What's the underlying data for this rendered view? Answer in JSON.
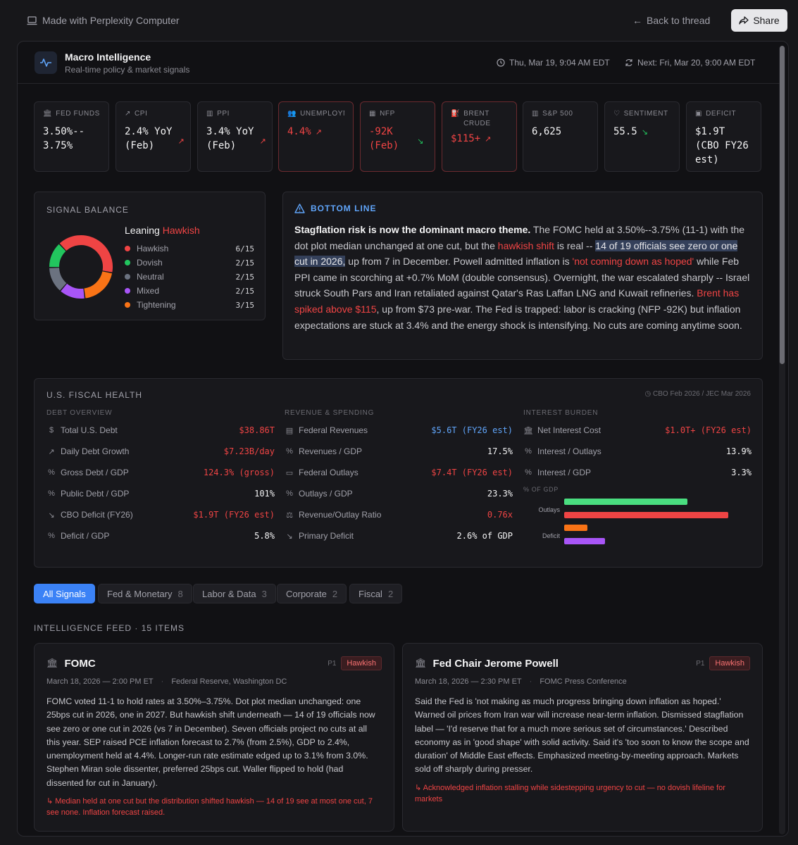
{
  "topbar": {
    "made_with": "Made with Perplexity Computer",
    "back": "Back to thread",
    "share": "Share"
  },
  "header": {
    "title": "Macro Intelligence",
    "subtitle": "Real-time policy & market signals",
    "timestamp": "Thu, Mar 19, 9:04 AM EDT",
    "next": "Next: Fri, Mar 20, 9:00 AM EDT"
  },
  "metrics": [
    {
      "label": "FED FUNDS",
      "value": "3.50%--\n3.75%",
      "icon": "bank-icon"
    },
    {
      "label": "CPI",
      "value": "2.4% YoY\n(Feb)",
      "icon": "trend-up-icon"
    },
    {
      "label": "PPI",
      "value": "3.4% YoY\n(Feb)",
      "icon": "bar-chart-icon"
    },
    {
      "label": "UNEMPLOYMENT",
      "value": "4.4%",
      "icon": "users-icon"
    },
    {
      "label": "NFP",
      "value": "-92K\n(Feb)",
      "icon": "building-icon"
    },
    {
      "label": "BRENT\nCRUDE",
      "value": "$115+",
      "icon": "fuel-icon"
    },
    {
      "label": "S&P 500",
      "value": "6,625",
      "icon": "bar-chart-icon"
    },
    {
      "label": "SENTIMENT",
      "value": "55.5",
      "icon": "heart-icon"
    },
    {
      "label": "DEFICIT",
      "value": "$1.9T\n(CBO FY26\nest)",
      "icon": "wallet-icon"
    }
  ],
  "signal_balance": {
    "title": "SIGNAL BALANCE",
    "leaning_prefix": "Leaning ",
    "leaning": "Hawkish",
    "items": [
      {
        "label": "Hawkish",
        "value": "6/15",
        "count": 6,
        "color": "#ef4444"
      },
      {
        "label": "Dovish",
        "value": "2/15",
        "count": 2,
        "color": "#22c55e"
      },
      {
        "label": "Neutral",
        "value": "2/15",
        "count": 2,
        "color": "#6b7280"
      },
      {
        "label": "Mixed",
        "value": "2/15",
        "count": 2,
        "color": "#a855f7"
      },
      {
        "label": "Tightening",
        "value": "3/15",
        "count": 3,
        "color": "#f97316"
      }
    ]
  },
  "bottom_line": {
    "title": "BOTTOM LINE",
    "lead": "Stagflation risk is now the dominant macro theme.",
    "t1": " The FOMC held at 3.50%--3.75% (11-1) with the dot plot median unchanged at one cut, but the ",
    "h1": "hawkish shift",
    "t2": " is real -- ",
    "sel": "14 of 19 officials see zero or one cut in 2026,",
    "t3": " up from 7 in December. Powell admitted inflation is ",
    "h2": "'not coming down as hoped'",
    "t4": " while Feb PPI came in scorching at +0.7% MoM (double consensus). Overnight, the war escalated sharply -- Israel struck South Pars and Iran retaliated against Qatar's Ras Laffan LNG and Kuwait refineries. ",
    "h3": "Brent has spiked above $115",
    "t5": ", up from $73 pre-war. The Fed is trapped: labor is cracking (NFP -92K) but inflation expectations are stuck at 3.4% and the energy shock is intensifying. No cuts are coming anytime soon."
  },
  "fiscal": {
    "title": "U.S. FISCAL HEALTH",
    "source": "CBO Feb 2026 / JEC Mar 2026",
    "debt": {
      "heading": "DEBT OVERVIEW",
      "rows": [
        {
          "label": "Total U.S. Debt",
          "value": "$38.86T",
          "icon": "dollar-icon"
        },
        {
          "label": "Daily Debt Growth",
          "value": "$7.23B/day",
          "icon": "trend-up-icon"
        },
        {
          "label": "Gross Debt / GDP",
          "value": "124.3% (gross)",
          "icon": "percent-icon"
        },
        {
          "label": "Public Debt / GDP",
          "value": "101%",
          "icon": "percent-icon"
        },
        {
          "label": "CBO Deficit (FY26)",
          "value": "$1.9T (FY26 est)",
          "icon": "trend-down-icon"
        },
        {
          "label": "Deficit / GDP",
          "value": "5.8%",
          "icon": "percent-icon"
        }
      ]
    },
    "revenue": {
      "heading": "REVENUE & SPENDING",
      "rows": [
        {
          "label": "Federal Revenues",
          "value": "$5.6T (FY26 est)",
          "icon": "receipt-icon"
        },
        {
          "label": "Revenues / GDP",
          "value": "17.5%",
          "icon": "percent-icon"
        },
        {
          "label": "Federal Outlays",
          "value": "$7.4T (FY26 est)",
          "icon": "card-icon"
        },
        {
          "label": "Outlays / GDP",
          "value": "23.3%",
          "icon": "percent-icon"
        },
        {
          "label": "Revenue/Outlay Ratio",
          "value": "0.76x",
          "icon": "scale-icon"
        },
        {
          "label": "Primary Deficit",
          "value": "2.6% of GDP",
          "icon": "trend-down-icon"
        }
      ]
    },
    "interest": {
      "heading": "INTEREST BURDEN",
      "rows": [
        {
          "label": "Net Interest Cost",
          "value": "$1.0T+ (FY26 est)",
          "icon": "bank-icon"
        },
        {
          "label": "Interest / Outlays",
          "value": "13.9%",
          "icon": "percent-icon"
        },
        {
          "label": "Interest / GDP",
          "value": "3.3%",
          "icon": "percent-icon"
        }
      ]
    },
    "gdp_chart": {
      "heading": "% OF GDP",
      "bars": [
        {
          "label": "",
          "value": 17.5,
          "color": "#4ade80"
        },
        {
          "label": "Outlays",
          "value": 23.3,
          "color": "#ef4444"
        },
        {
          "label": "",
          "value": 3.3,
          "color": "#f97316"
        },
        {
          "label": "Deficit",
          "value": 5.8,
          "color": "#a855f7"
        }
      ]
    }
  },
  "filters": [
    {
      "label": "All Signals",
      "count": ""
    },
    {
      "label": "Fed & Monetary",
      "count": "8"
    },
    {
      "label": "Labor & Data",
      "count": "3"
    },
    {
      "label": "Corporate",
      "count": "2"
    },
    {
      "label": "Fiscal",
      "count": "2"
    }
  ],
  "feed": {
    "title": "INTELLIGENCE FEED · 15 ITEMS",
    "items": [
      {
        "title": "FOMC",
        "priority": "P1",
        "badge": "Hawkish",
        "date": "March 18, 2026 — 2:00 PM ET",
        "source": "Federal Reserve, Washington DC",
        "body": "FOMC voted 11-1 to hold rates at 3.50%–3.75%. Dot plot median unchanged: one 25bps cut in 2026, one in 2027. But hawkish shift underneath — 14 of 19 officials now see zero or one cut in 2026 (vs 7 in December). Seven officials project no cuts at all this year. SEP raised PCE inflation forecast to 2.7% (from 2.5%), GDP to 2.4%, unemployment held at 4.4%. Longer-run rate estimate edged up to 3.1% from 3.0%. Stephen Miran sole dissenter, preferred 25bps cut. Waller flipped to hold (had dissented for cut in January).",
        "note": "↳ Median held at one cut but the distribution shifted hawkish — 14 of 19 see at most one cut, 7 see none. Inflation forecast raised."
      },
      {
        "title": "Fed Chair Jerome Powell",
        "priority": "P1",
        "badge": "Hawkish",
        "date": "March 18, 2026 — 2:30 PM ET",
        "source": "FOMC Press Conference",
        "body": "Said the Fed is 'not making as much progress bringing down inflation as hoped.' Warned oil prices from Iran war will increase near-term inflation. Dismissed stagflation label — 'I'd reserve that for a much more serious set of circumstances.' Described economy as in 'good shape' with solid activity. Said it's 'too soon to know the scope and duration' of Middle East effects. Emphasized meeting-by-meeting approach. Markets sold off sharply during presser.",
        "note": "↳ Acknowledged inflation stalling while sidestepping urgency to cut — no dovish lifeline for markets"
      }
    ]
  }
}
